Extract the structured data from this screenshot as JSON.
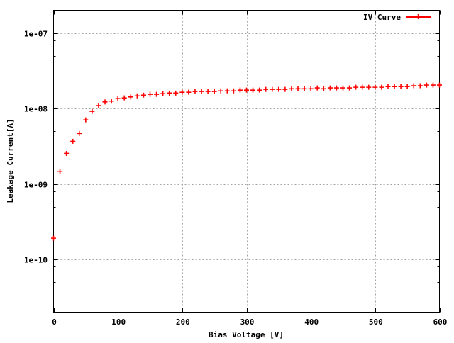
{
  "chart_data": {
    "type": "scatter",
    "title": "",
    "xlabel": "Bias Voltage [V]",
    "ylabel": "Leakage Current[A]",
    "xlim": [
      0,
      600
    ],
    "ylim": [
      2e-11,
      2e-07
    ],
    "yscale": "log",
    "grid": true,
    "legend_position": "top-right",
    "x_ticks": [
      0,
      100,
      200,
      300,
      400,
      500,
      600
    ],
    "x_tick_labels": [
      "0",
      "100",
      "200",
      "300",
      "400",
      "500",
      "600"
    ],
    "y_ticks": [
      1e-07,
      1e-08,
      1e-09,
      1e-10
    ],
    "y_tick_labels": [
      "1e-07",
      "1e-08",
      "1e-09",
      "1e-10"
    ],
    "series": [
      {
        "name": "IV Curve",
        "color": "#ff0000",
        "marker": "plus",
        "x": [
          0,
          10,
          20,
          30,
          40,
          50,
          60,
          70,
          80,
          90,
          100,
          110,
          120,
          130,
          140,
          150,
          160,
          170,
          180,
          190,
          200,
          210,
          220,
          230,
          240,
          250,
          260,
          270,
          280,
          290,
          300,
          310,
          320,
          330,
          340,
          350,
          360,
          370,
          380,
          390,
          400,
          410,
          420,
          430,
          440,
          450,
          460,
          470,
          480,
          490,
          500,
          510,
          520,
          530,
          540,
          550,
          560,
          570,
          580,
          590,
          600
        ],
        "y": [
          1.91e-10,
          1.47e-09,
          2.54e-09,
          3.67e-09,
          4.67e-09,
          7.06e-09,
          9.16e-09,
          1.09e-08,
          1.22e-08,
          1.25e-08,
          1.35e-08,
          1.38e-08,
          1.42e-08,
          1.47e-08,
          1.5e-08,
          1.54e-08,
          1.54e-08,
          1.57e-08,
          1.6e-08,
          1.6e-08,
          1.64e-08,
          1.64e-08,
          1.68e-08,
          1.68e-08,
          1.68e-08,
          1.68e-08,
          1.71e-08,
          1.71e-08,
          1.71e-08,
          1.75e-08,
          1.75e-08,
          1.75e-08,
          1.75e-08,
          1.79e-08,
          1.79e-08,
          1.79e-08,
          1.79e-08,
          1.82e-08,
          1.82e-08,
          1.82e-08,
          1.82e-08,
          1.87e-08,
          1.82e-08,
          1.87e-08,
          1.87e-08,
          1.87e-08,
          1.87e-08,
          1.91e-08,
          1.91e-08,
          1.91e-08,
          1.91e-08,
          1.91e-08,
          1.95e-08,
          1.95e-08,
          1.95e-08,
          1.95e-08,
          2e-08,
          2e-08,
          2.04e-08,
          2.04e-08,
          2.04e-08
        ]
      }
    ]
  }
}
